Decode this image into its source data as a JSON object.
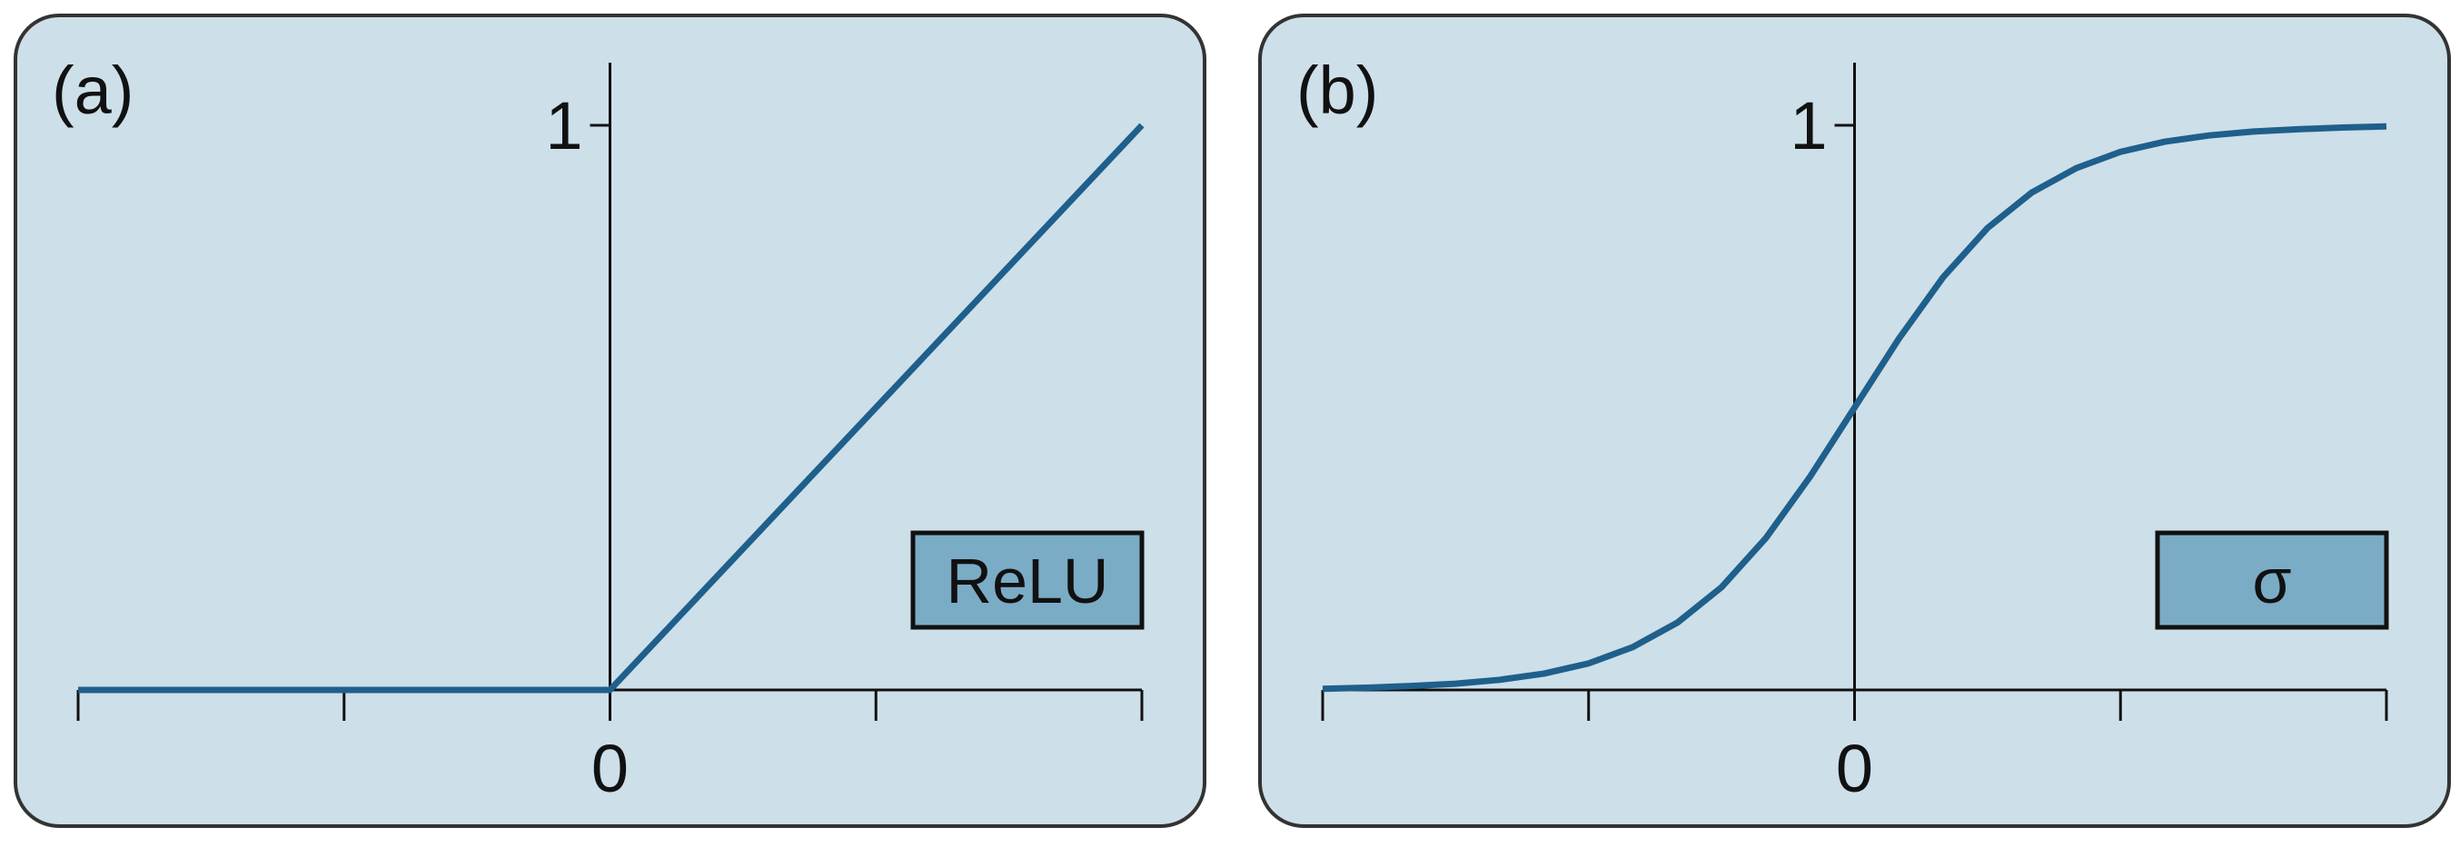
{
  "chart_data": [
    {
      "type": "line",
      "title": "(a)",
      "x": [
        -1,
        0,
        1
      ],
      "series": [
        {
          "name": "ReLU",
          "color": "#1f5f8b",
          "values": [
            0,
            0,
            1
          ]
        }
      ],
      "xlim": [
        -1,
        1
      ],
      "xticks": [
        0
      ],
      "xminor_ticks": [
        -1,
        -0.5,
        0.5,
        1
      ],
      "ylim": [
        0,
        1
      ],
      "yticks": [
        1
      ],
      "background": "#cddfe9",
      "legend_color": "#7bacc6",
      "legend": "lower right"
    },
    {
      "type": "line",
      "title": "(b)",
      "x": [
        -6,
        -5.5,
        -5,
        -4.5,
        -4,
        -3.5,
        -3,
        -2.5,
        -2,
        -1.5,
        -1,
        -0.5,
        0,
        0.5,
        1,
        1.5,
        2,
        2.5,
        3,
        3.5,
        4,
        4.5,
        5,
        5.5,
        6
      ],
      "series": [
        {
          "name": "σ",
          "color": "#1f5f8b",
          "values": [
            0.002,
            0.004,
            0.007,
            0.011,
            0.018,
            0.029,
            0.047,
            0.076,
            0.119,
            0.182,
            0.269,
            0.378,
            0.5,
            0.622,
            0.731,
            0.818,
            0.881,
            0.924,
            0.953,
            0.971,
            0.982,
            0.989,
            0.993,
            0.996,
            0.998
          ]
        }
      ],
      "xlim": [
        -6,
        6
      ],
      "xticks": [
        0
      ],
      "xminor_ticks": [
        -6,
        -3,
        3,
        6
      ],
      "ylim": [
        0,
        1
      ],
      "yticks": [
        1
      ],
      "background": "#cddfe9",
      "legend_color": "#7bacc6",
      "legend": "lower right"
    }
  ]
}
